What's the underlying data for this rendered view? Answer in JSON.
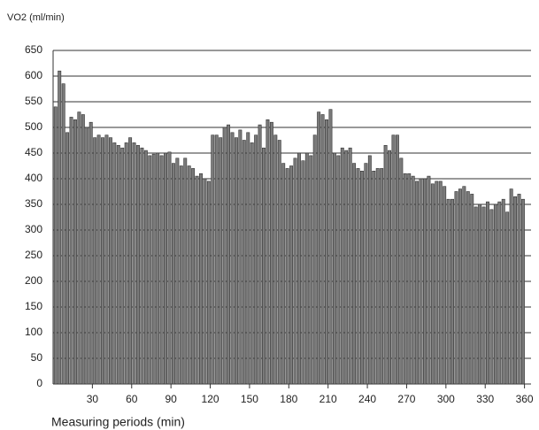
{
  "chart_data": {
    "type": "bar",
    "y_label": "VO2 (ml/min)",
    "x_label": "Measuring periods (min)",
    "x": [
      3,
      6,
      9,
      12,
      15,
      18,
      21,
      24,
      27,
      30,
      33,
      36,
      39,
      42,
      45,
      48,
      51,
      54,
      57,
      60,
      63,
      66,
      69,
      72,
      75,
      78,
      81,
      84,
      87,
      90,
      93,
      96,
      99,
      102,
      105,
      108,
      111,
      114,
      117,
      120,
      123,
      126,
      129,
      132,
      135,
      138,
      141,
      144,
      147,
      150,
      153,
      156,
      159,
      162,
      165,
      168,
      171,
      174,
      177,
      180,
      183,
      186,
      189,
      192,
      195,
      198,
      201,
      204,
      207,
      210,
      213,
      216,
      219,
      222,
      225,
      228,
      231,
      234,
      237,
      240,
      243,
      246,
      249,
      252,
      255,
      258,
      261,
      264,
      267,
      270,
      273,
      276,
      279,
      282,
      285,
      288,
      291,
      294,
      297,
      300,
      303,
      306,
      309,
      312,
      315,
      318,
      321,
      324,
      327,
      330,
      333,
      336,
      339,
      342,
      345,
      348,
      351,
      354,
      357,
      360
    ],
    "values": [
      540,
      610,
      585,
      490,
      520,
      515,
      530,
      525,
      500,
      510,
      480,
      485,
      480,
      485,
      480,
      470,
      465,
      460,
      470,
      480,
      470,
      465,
      460,
      455,
      445,
      448,
      450,
      445,
      450,
      452,
      430,
      440,
      425,
      440,
      425,
      420,
      405,
      410,
      400,
      395,
      485,
      485,
      480,
      500,
      505,
      490,
      480,
      495,
      475,
      490,
      470,
      485,
      505,
      460,
      515,
      510,
      485,
      475,
      430,
      420,
      425,
      440,
      450,
      435,
      450,
      445,
      485,
      530,
      525,
      515,
      535,
      450,
      445,
      460,
      455,
      460,
      430,
      420,
      415,
      430,
      445,
      415,
      420,
      420,
      465,
      455,
      485,
      485,
      440,
      410,
      410,
      405,
      395,
      400,
      400,
      405,
      390,
      395,
      395,
      385,
      360,
      360,
      375,
      380,
      385,
      375,
      370,
      345,
      350,
      345,
      355,
      340,
      350,
      355,
      360,
      335,
      380,
      365,
      370,
      360
    ],
    "color": "#7a7a7a",
    "xlim": [
      0,
      365
    ],
    "xticks": [
      30,
      60,
      90,
      120,
      150,
      180,
      210,
      240,
      270,
      300,
      330,
      360
    ],
    "ylim": [
      0,
      650
    ],
    "yticks": [
      0,
      50,
      100,
      150,
      200,
      250,
      300,
      350,
      400,
      450,
      500,
      550,
      600,
      650
    ],
    "grid": true
  }
}
